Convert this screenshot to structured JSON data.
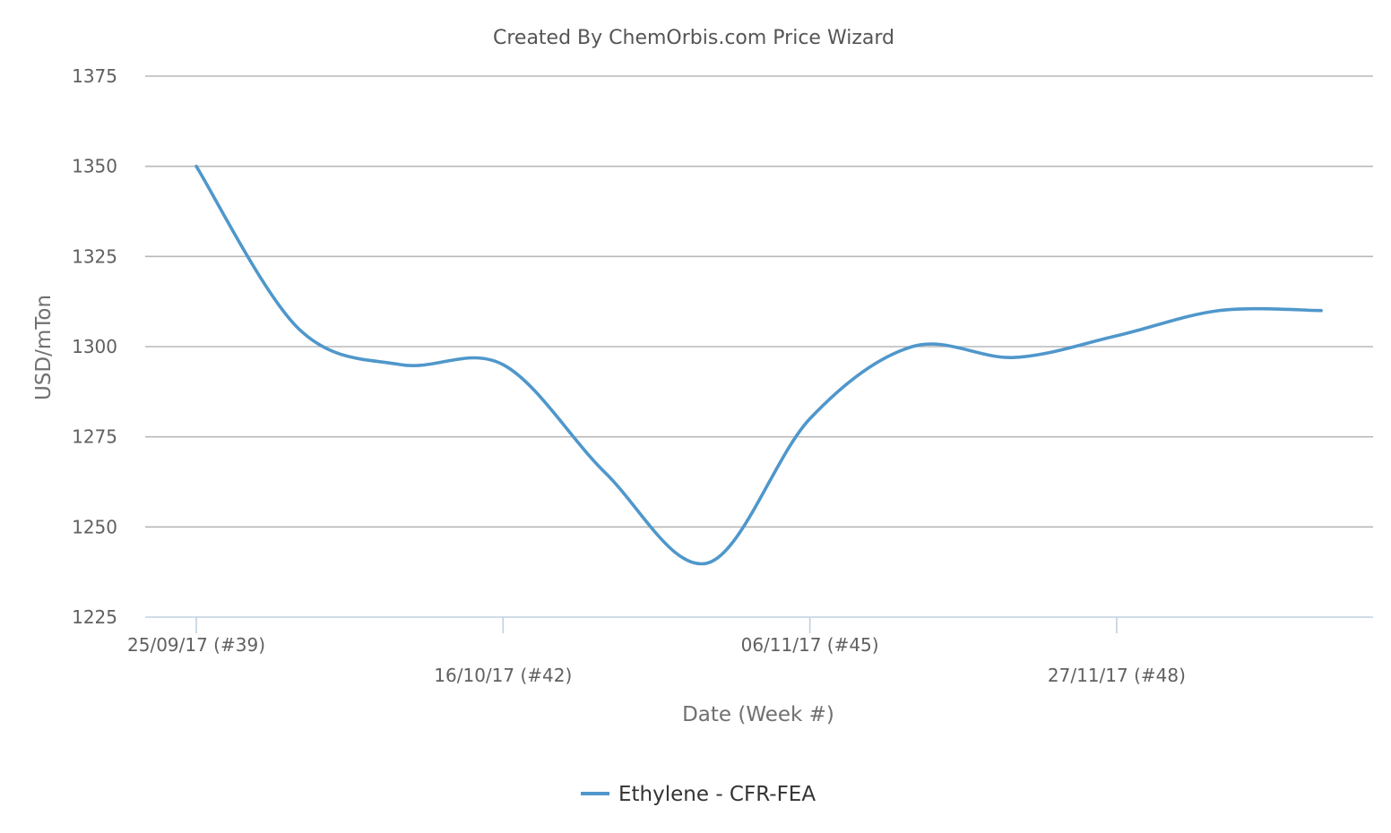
{
  "chart_data": {
    "type": "line",
    "title": "Created By ChemOrbis.com Price Wizard",
    "xlabel": "Date (Week #)",
    "ylabel": "USD/mTon",
    "ylim": [
      1225,
      1375
    ],
    "yticks": [
      1225,
      1250,
      1275,
      1300,
      1325,
      1350,
      1375
    ],
    "xticks": [
      {
        "label": "25/09/17 (#39)",
        "week": 0
      },
      {
        "label": "16/10/17 (#42)",
        "week": 3
      },
      {
        "label": "06/11/17 (#45)",
        "week": 6
      },
      {
        "label": "27/11/17 (#48)",
        "week": 9
      }
    ],
    "legend_position": "bottom-center",
    "grid": true,
    "series": [
      {
        "name": "Ethylene - CFR-FEA",
        "color": "#4f97cb",
        "points": [
          {
            "week": 0,
            "value": 1350
          },
          {
            "week": 1,
            "value": 1305
          },
          {
            "week": 2,
            "value": 1295
          },
          {
            "week": 3,
            "value": 1295
          },
          {
            "week": 4,
            "value": 1265
          },
          {
            "week": 5,
            "value": 1240
          },
          {
            "week": 6,
            "value": 1280
          },
          {
            "week": 7,
            "value": 1300
          },
          {
            "week": 8,
            "value": 1297
          },
          {
            "week": 9,
            "value": 1303
          },
          {
            "week": 10,
            "value": 1310
          },
          {
            "week": 11,
            "value": 1310
          }
        ]
      }
    ]
  }
}
